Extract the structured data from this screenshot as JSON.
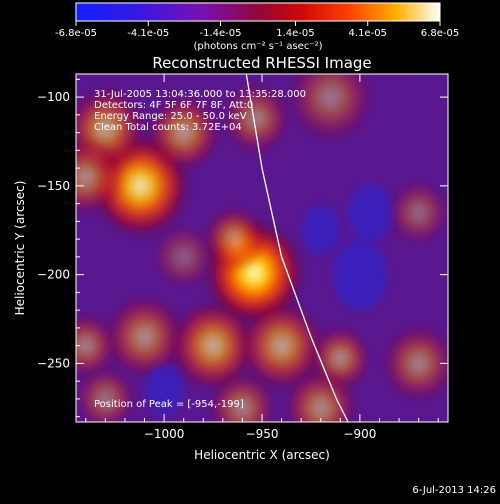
{
  "chart_data": {
    "type": "heatmap",
    "title": "Reconstructed RHESSI Image",
    "xlabel": "Heliocentric X (arcsec)",
    "ylabel": "Heliocentric Y (arcsec)",
    "xlim": [
      -1045,
      -855
    ],
    "ylim": [
      -283,
      -87
    ],
    "x_ticks": [
      -1000,
      -950,
      -900
    ],
    "y_ticks": [
      -100,
      -150,
      -200,
      -250
    ],
    "colorbar": {
      "min": -6.8e-05,
      "max": 6.8e-05,
      "tick_labels": [
        "-6.8e-05",
        "-4.1e-05",
        "-1.4e-05",
        "1.4e-05",
        "4.1e-05",
        "6.8e-05"
      ],
      "units": "(photons cm⁻² s⁻¹ asec⁻²)"
    },
    "annotations": [
      "31-Jul-2005 13:04:36.000 to 13:35:28.000",
      "Detectors: 4F 5F 6F 7F 8F, Att:0",
      "Energy Range: 25.0 - 50.0 keV",
      "Clean     Total counts: 3.72E+04"
    ],
    "peak_label": "Position of Peak = [-954,-199]",
    "peak": [
      -954,
      -199
    ],
    "limb": [
      [
        -958,
        -87
      ],
      [
        -950,
        -140
      ],
      [
        -940,
        -190
      ],
      [
        -925,
        -235
      ],
      [
        -912,
        -270
      ],
      [
        -906,
        -283
      ]
    ],
    "sources": [
      {
        "x": -954,
        "y": -199,
        "s": 16,
        "a": 1.0
      },
      {
        "x": -964,
        "y": -180,
        "s": 10,
        "a": 0.55
      },
      {
        "x": -1012,
        "y": -150,
        "s": 16,
        "a": 0.9
      },
      {
        "x": -1030,
        "y": -118,
        "s": 13,
        "a": 0.6
      },
      {
        "x": -990,
        "y": -120,
        "s": 12,
        "a": 0.55
      },
      {
        "x": -1040,
        "y": -145,
        "s": 12,
        "a": 0.5
      },
      {
        "x": -953,
        "y": -112,
        "s": 11,
        "a": 0.45
      },
      {
        "x": -915,
        "y": -100,
        "s": 14,
        "a": 0.4
      },
      {
        "x": -1010,
        "y": -235,
        "s": 13,
        "a": 0.5
      },
      {
        "x": -975,
        "y": -240,
        "s": 14,
        "a": 0.65
      },
      {
        "x": -940,
        "y": -240,
        "s": 14,
        "a": 0.6
      },
      {
        "x": -910,
        "y": -247,
        "s": 10,
        "a": 0.5
      },
      {
        "x": -1040,
        "y": -240,
        "s": 10,
        "a": 0.45
      },
      {
        "x": -870,
        "y": -250,
        "s": 12,
        "a": 0.45
      },
      {
        "x": -1030,
        "y": -270,
        "s": 10,
        "a": 0.4
      },
      {
        "x": -960,
        "y": -275,
        "s": 11,
        "a": 0.45
      },
      {
        "x": -920,
        "y": -275,
        "s": 12,
        "a": 0.5
      },
      {
        "x": -870,
        "y": -165,
        "s": 10,
        "a": 0.35
      },
      {
        "x": -990,
        "y": -190,
        "s": 10,
        "a": 0.3
      }
    ]
  },
  "footer": {
    "timestamp": "6-Jul-2013 14:26"
  }
}
